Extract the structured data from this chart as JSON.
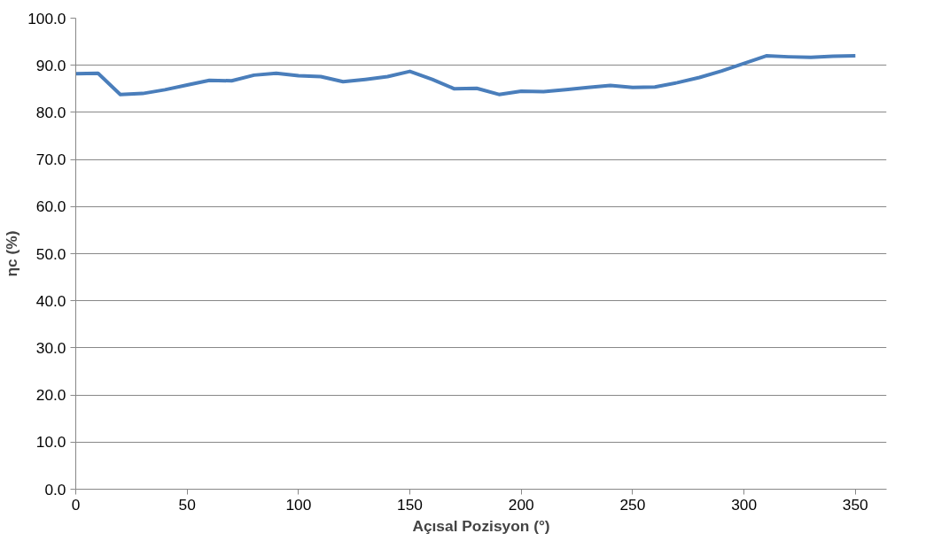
{
  "chart_data": {
    "type": "line",
    "xlabel": "Açısal Pozisyon (°)",
    "ylabel": "ηc (%)",
    "x": [
      0,
      10,
      20,
      30,
      40,
      50,
      60,
      70,
      80,
      90,
      100,
      110,
      120,
      130,
      140,
      150,
      160,
      170,
      180,
      190,
      200,
      210,
      220,
      230,
      240,
      250,
      260,
      270,
      280,
      290,
      300,
      310,
      320,
      330,
      340,
      350
    ],
    "series": [
      {
        "color": "#4a7ebb",
        "values": [
          88.2,
          88.3,
          83.8,
          84.0,
          84.8,
          85.8,
          86.8,
          86.7,
          87.9,
          88.3,
          87.8,
          87.6,
          86.5,
          87.0,
          87.6,
          88.7,
          87.0,
          85.0,
          85.1,
          83.8,
          84.5,
          84.4,
          84.8,
          85.3,
          85.7,
          85.3,
          85.4,
          86.3,
          87.4,
          88.8,
          90.4,
          92.0,
          91.8,
          91.7,
          91.9,
          92.0
        ]
      }
    ],
    "xlim": [
      0,
      364
    ],
    "xticks": [
      0,
      50,
      100,
      150,
      200,
      250,
      300,
      350
    ],
    "ylim": [
      0,
      100
    ],
    "yticks": [
      {
        "value": 0,
        "label": "0.0"
      },
      {
        "value": 10,
        "label": "10.0"
      },
      {
        "value": 20,
        "label": "20.0"
      },
      {
        "value": 30,
        "label": "30.0"
      },
      {
        "value": 40,
        "label": "40.0"
      },
      {
        "value": 50,
        "label": "50.0"
      },
      {
        "value": 60,
        "label": "60.0"
      },
      {
        "value": 70,
        "label": "70.0"
      },
      {
        "value": 80,
        "label": "80.0"
      },
      {
        "value": 90,
        "label": "90.0"
      },
      {
        "value": 100,
        "label": "100.0"
      }
    ],
    "grid": "y",
    "marker": "none",
    "line_style": "solid"
  }
}
